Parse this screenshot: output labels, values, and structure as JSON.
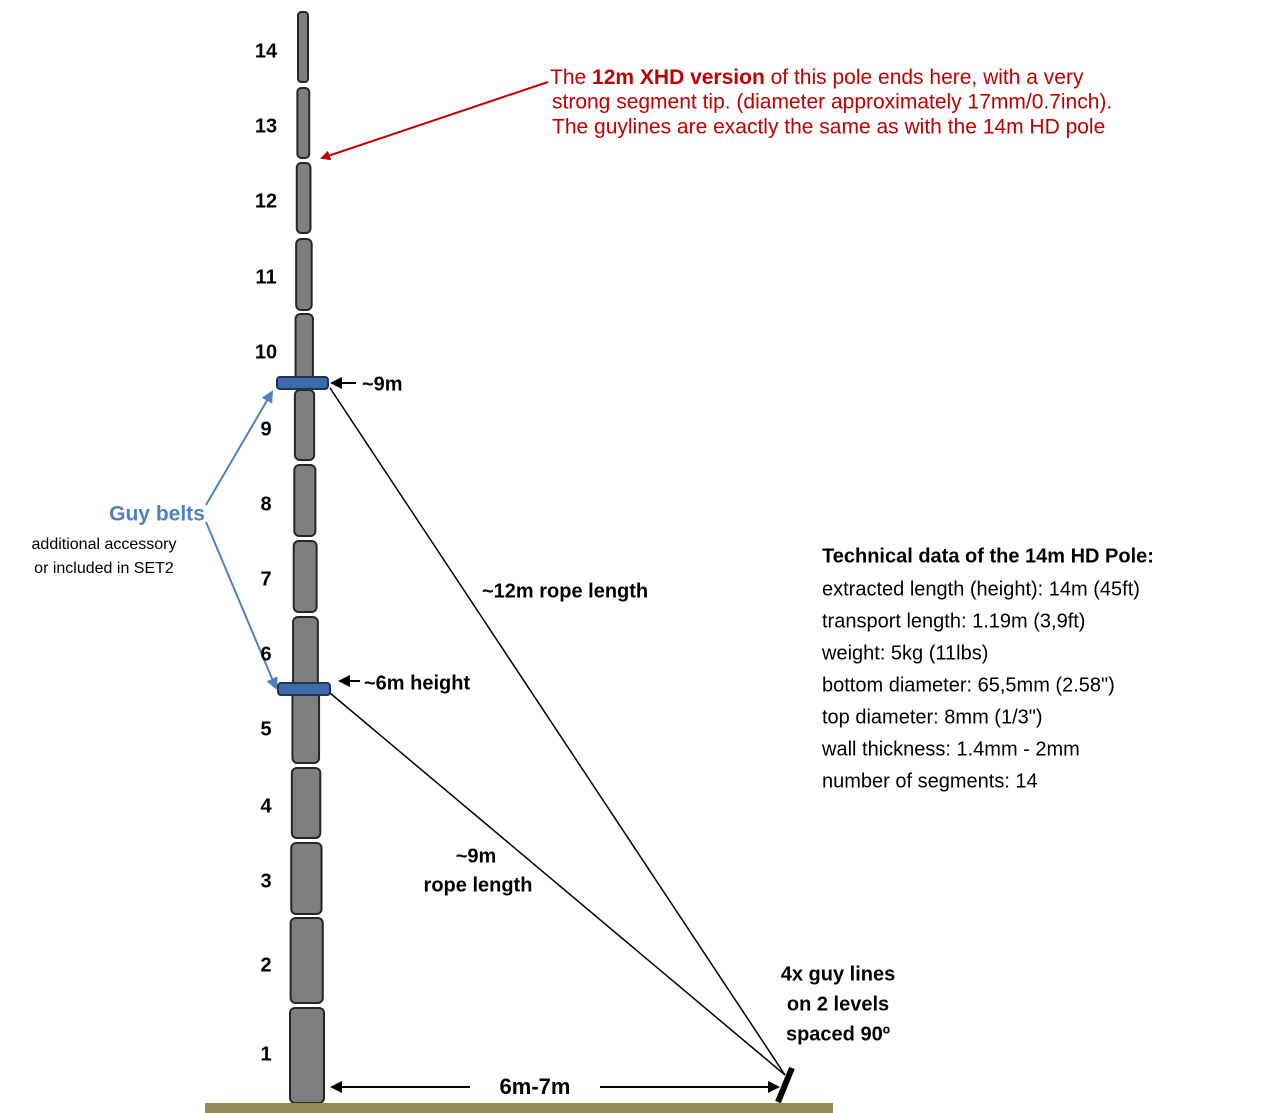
{
  "segment_labels": [
    "1",
    "2",
    "3",
    "4",
    "5",
    "6",
    "7",
    "8",
    "9",
    "10",
    "11",
    "12",
    "13",
    "14"
  ],
  "annotation": {
    "prefix": "The ",
    "bold": "12m XHD version",
    "suffix": " of this pole ends here, with a very",
    "lines": [
      "strong segment tip. (diameter approximately 17mm/0.7inch).",
      "The guylines are exactly the same as with the 14m HD pole"
    ]
  },
  "guy_belts": {
    "title": "Guy belts",
    "lines": [
      "additional accessory",
      "or included in SET2"
    ]
  },
  "markers": [
    "~9m",
    "~6m height"
  ],
  "ropes": {
    "upper": "~12m rope length",
    "lower": [
      "~9m",
      "rope length"
    ]
  },
  "guy_lines_note": [
    "4x guy lines",
    "on 2 levels",
    "spaced 90º"
  ],
  "distance": "6m-7m",
  "tech": {
    "title": "Technical data of the 14m HD Pole:",
    "lines": [
      "extracted length (height): 14m (45ft)",
      "transport length: 1.19m (3,9ft)",
      "weight: 5kg (11lbs)",
      "bottom diameter: 65,5mm (2.58\")",
      "top diameter: 8mm (1/3\")",
      "wall thickness: 1.4mm - 2mm",
      "number of segments: 14"
    ]
  }
}
